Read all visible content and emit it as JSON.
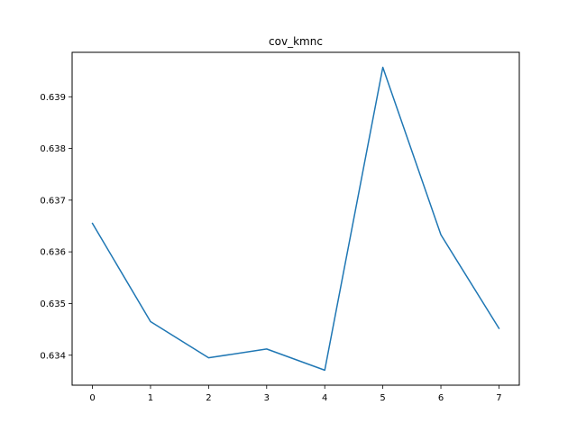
{
  "chart_data": {
    "type": "line",
    "title": "cov_kmnc",
    "xlabel": "",
    "ylabel": "",
    "x": [
      0,
      1,
      2,
      3,
      4,
      5,
      6,
      7
    ],
    "series": [
      {
        "values": [
          0.63655,
          0.63465,
          0.63395,
          0.63412,
          0.63371,
          0.63957,
          0.63633,
          0.63452
        ],
        "color": "#1f77b4"
      }
    ],
    "xlim": [
      -0.35,
      7.35
    ],
    "ylim": [
      0.63342,
      0.63986
    ],
    "x_ticks": [
      0,
      1,
      2,
      3,
      4,
      5,
      6,
      7
    ],
    "x_tick_labels": [
      "0",
      "1",
      "2",
      "3",
      "4",
      "5",
      "6",
      "7"
    ],
    "y_ticks": [
      0.634,
      0.635,
      0.636,
      0.637,
      0.638,
      0.639
    ],
    "y_tick_labels": [
      "0.634",
      "0.635",
      "0.636",
      "0.637",
      "0.638",
      "0.639"
    ],
    "grid": false,
    "legend": "none"
  }
}
